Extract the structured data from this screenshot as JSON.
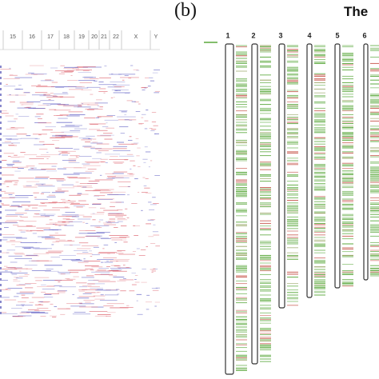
{
  "panel_label": "(b)",
  "title": "The",
  "heatmap": {
    "columns": [
      "15",
      "16",
      "17",
      "18",
      "19",
      "20",
      "21",
      "22",
      "X",
      "Y"
    ]
  },
  "ideogram": {
    "chromosomes": [
      "1",
      "2",
      "3",
      "4",
      "5",
      "6"
    ]
  }
}
